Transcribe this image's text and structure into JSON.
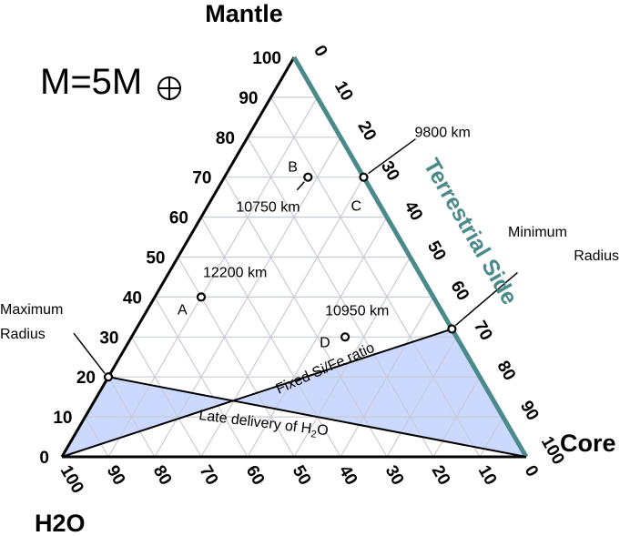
{
  "vertices": {
    "top": "Mantle",
    "right": "Core",
    "left": "H2O"
  },
  "mass_label": "M=5M",
  "side_label": "Terrestrial Side",
  "ticks": {
    "left_side": [
      "0",
      "10",
      "20",
      "30",
      "40",
      "50",
      "60",
      "70",
      "80",
      "90",
      "100"
    ],
    "right_side": [
      "0",
      "10",
      "20",
      "30",
      "40",
      "50",
      "60",
      "70",
      "80",
      "90",
      "100"
    ],
    "bottom": [
      "100",
      "90",
      "80",
      "70",
      "60",
      "50",
      "40",
      "30",
      "20",
      "10",
      "0"
    ]
  },
  "points": [
    {
      "id": "A",
      "mantle": 40,
      "h2o": 50,
      "core": 10,
      "radius": "12200 km"
    },
    {
      "id": "B",
      "mantle": 70,
      "h2o": 12,
      "core": 18,
      "radius": "10750 km"
    },
    {
      "id": "C",
      "mantle": 70,
      "h2o": 0,
      "core": 30,
      "radius": "9800 km"
    },
    {
      "id": "D",
      "mantle": 30,
      "h2o": 24,
      "core": 46,
      "radius": "10950 km"
    }
  ],
  "special_points": [
    {
      "label": "Maximum Radius",
      "lines": [
        "Maximum",
        "Radius"
      ],
      "mantle": 20,
      "h2o": 80,
      "core": 0
    },
    {
      "label": "Minimum Radius",
      "lines": [
        "Minimum",
        "Radius"
      ],
      "mantle": 32,
      "h2o": 0,
      "core": 68
    }
  ],
  "curves": {
    "fixed_si_fe": "Fixed Si/Fe ratio",
    "late_delivery": "Late delivery of H",
    "late_delivery_sub": "2",
    "late_delivery_end": "O"
  },
  "colors": {
    "fill": "#ccd9ff",
    "terrestrial": "#4a8a8a",
    "grid": "#c7cbd6"
  }
}
